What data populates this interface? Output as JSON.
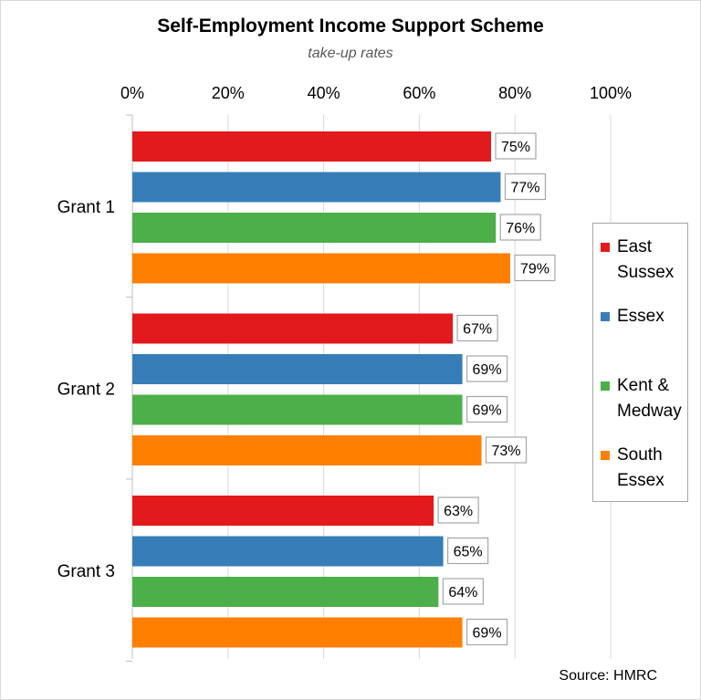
{
  "title": "Self-Employment Income Support Scheme",
  "subtitle": "take-up rates",
  "source": "Source: HMRC",
  "chart_data": {
    "type": "bar",
    "orientation": "horizontal",
    "title": "Self-Employment Income Support Scheme",
    "subtitle": "take-up rates",
    "categories": [
      "Grant 1",
      "Grant 2",
      "Grant 3"
    ],
    "xlim": [
      0,
      100
    ],
    "x_ticks": [
      0,
      20,
      40,
      60,
      80,
      100
    ],
    "x_tick_labels": [
      "0%",
      "20%",
      "40%",
      "60%",
      "80%",
      "100%"
    ],
    "x_axis_position": "top",
    "grid": true,
    "legend_position": "right",
    "series": [
      {
        "name": "East Sussex",
        "color": "#e31a1c",
        "values": [
          75,
          67,
          63
        ],
        "labels": [
          "75%",
          "67%",
          "63%"
        ]
      },
      {
        "name": "Essex",
        "color": "#377eb8",
        "values": [
          77,
          69,
          65
        ],
        "labels": [
          "77%",
          "69%",
          "65%"
        ]
      },
      {
        "name": "Kent & Medway",
        "color": "#4daf4a",
        "values": [
          76,
          69,
          64
        ],
        "labels": [
          "76%",
          "69%",
          "64%"
        ]
      },
      {
        "name": "South Essex",
        "color": "#ff7f00",
        "values": [
          79,
          73,
          69
        ],
        "labels": [
          "79%",
          "73%",
          "69%"
        ]
      }
    ]
  }
}
